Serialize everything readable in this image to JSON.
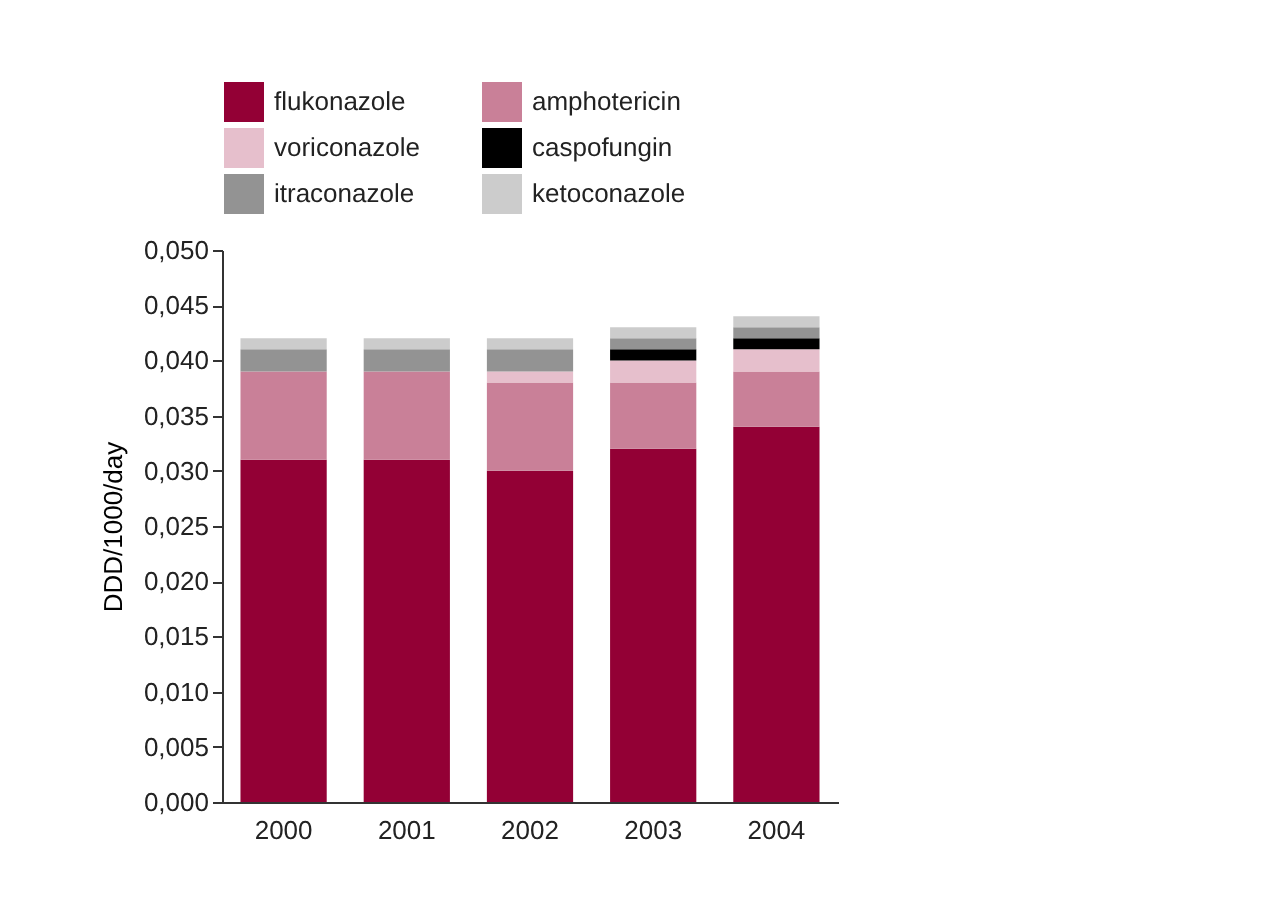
{
  "chart_data": {
    "type": "bar",
    "stacked": true,
    "ylabel": "DDD/1000/day",
    "categories": [
      "2000",
      "2001",
      "2002",
      "2003",
      "2004"
    ],
    "series": [
      {
        "name": "flukonazole",
        "color": "#930035",
        "values": [
          0.031,
          0.031,
          0.03,
          0.032,
          0.034
        ]
      },
      {
        "name": "amphotericin",
        "color": "#c98098",
        "values": [
          0.008,
          0.008,
          0.008,
          0.006,
          0.005
        ]
      },
      {
        "name": "voriconazole",
        "color": "#e6bfcc",
        "values": [
          0,
          0,
          0.001,
          0.002,
          0.002
        ]
      },
      {
        "name": "caspofungin",
        "color": "#000000",
        "values": [
          0,
          0,
          0,
          0.001,
          0.001
        ]
      },
      {
        "name": "itraconazole",
        "color": "#939393",
        "values": [
          0.002,
          0.002,
          0.002,
          0.001,
          0.001
        ]
      },
      {
        "name": "ketoconazole",
        "color": "#cccccc",
        "values": [
          0.001,
          0.001,
          0.001,
          0.001,
          0.001
        ]
      }
    ],
    "ylim": [
      0,
      0.05
    ],
    "yticks": [
      {
        "value": 0,
        "label": "0,000"
      },
      {
        "value": 0.005,
        "label": "0,005"
      },
      {
        "value": 0.01,
        "label": "0,010"
      },
      {
        "value": 0.015,
        "label": "0,015"
      },
      {
        "value": 0.02,
        "label": "0,020"
      },
      {
        "value": 0.025,
        "label": "0,025"
      },
      {
        "value": 0.03,
        "label": "0,030"
      },
      {
        "value": 0.035,
        "label": "0,035"
      },
      {
        "value": 0.04,
        "label": "0,040"
      },
      {
        "value": 0.045,
        "label": "0,045"
      },
      {
        "value": 0.05,
        "label": "0,050"
      }
    ],
    "grid": false,
    "legend": "top"
  }
}
